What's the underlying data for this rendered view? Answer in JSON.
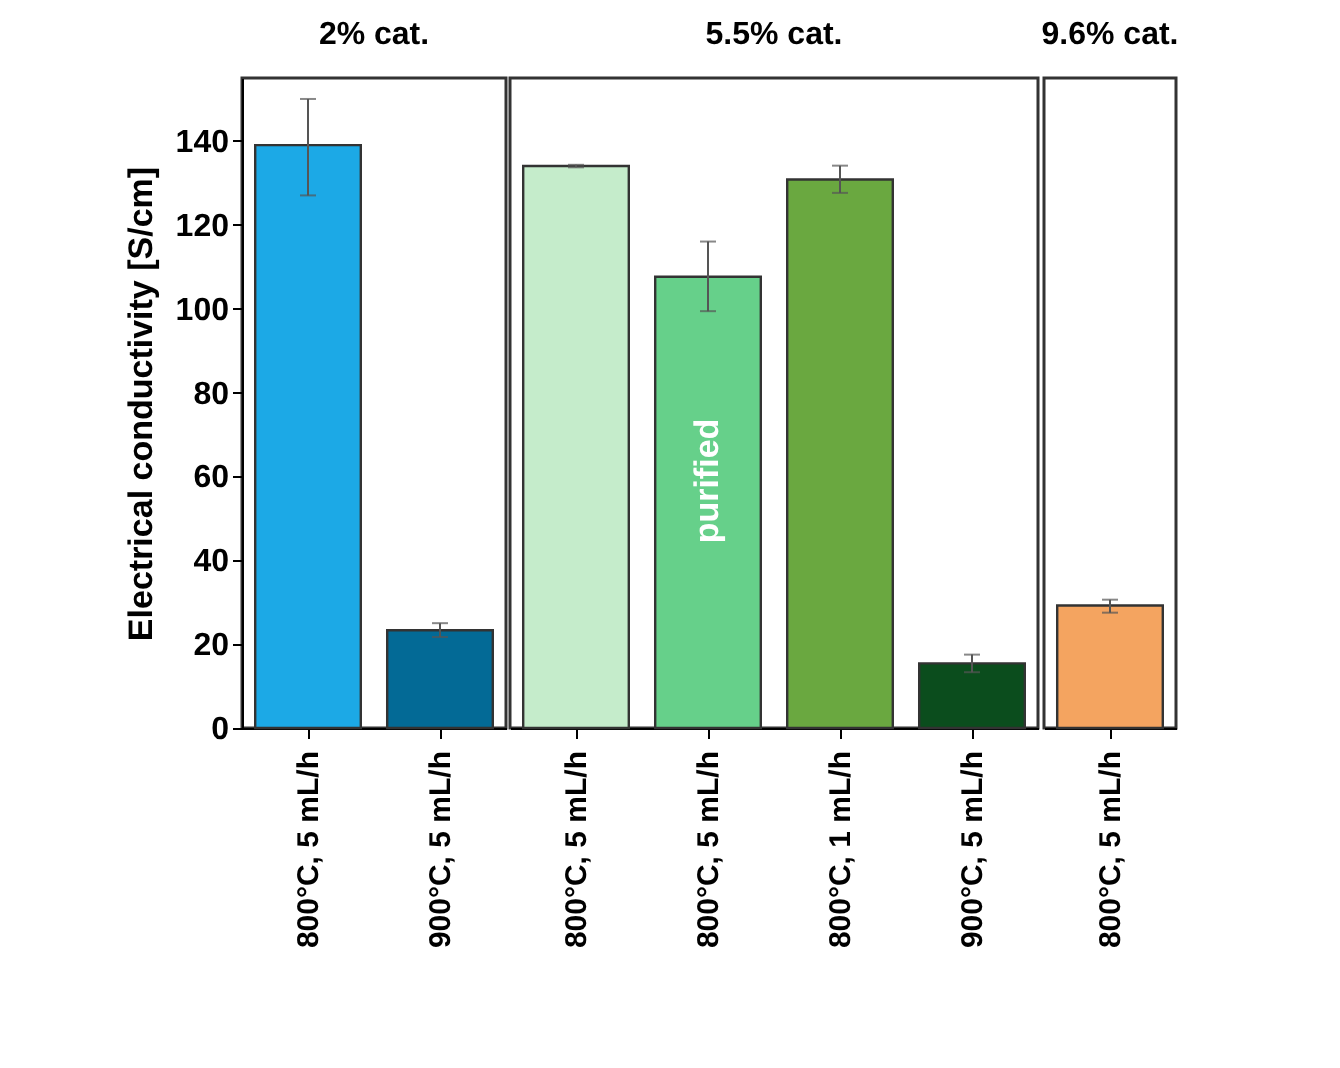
{
  "chart_data": [
    {
      "type": "bar",
      "title": "2% cat.",
      "ylabel": "Electrical conductivity [S/cm]",
      "categories": [
        "800°C, 5 mL/h",
        "900°C, 5 mL/h"
      ],
      "values": [
        139,
        23.3
      ],
      "colors": [
        "#1ca9e6",
        "#036a96"
      ],
      "errors": [
        [
          127,
          150
        ],
        [
          21.7,
          25
        ]
      ],
      "ylim": [
        0,
        155
      ],
      "yticks": [
        0,
        20,
        40,
        60,
        80,
        100,
        120,
        140
      ]
    },
    {
      "type": "bar",
      "title": "5.5% cat.",
      "categories": [
        "800°C, 5 mL/h",
        "800°C, 5 mL/h",
        "800°C, 1 mL/h",
        "900°C, 5 mL/h"
      ],
      "values": [
        134,
        107.6,
        130.8,
        15.4
      ],
      "colors": [
        "#c5eccb",
        "#66d08a",
        "#6aa840",
        "#0b4d1d"
      ],
      "errors": [
        [
          133.7,
          134.3
        ],
        [
          99.4,
          116
        ],
        [
          127.6,
          134.1
        ],
        [
          13.3,
          17.5
        ]
      ],
      "ylim": [
        0,
        155
      ],
      "tick_labels": "x",
      "annotations": [
        "purified"
      ]
    },
    {
      "type": "bar",
      "title": "9.6% cat.",
      "categories": [
        "800°C, 5 mL/h"
      ],
      "values": [
        29.2
      ],
      "colors": [
        "#f4a460"
      ],
      "errors": [
        [
          27.5,
          30.6
        ]
      ],
      "ylim": [
        0,
        155
      ],
      "tick_labels": "x"
    }
  ]
}
